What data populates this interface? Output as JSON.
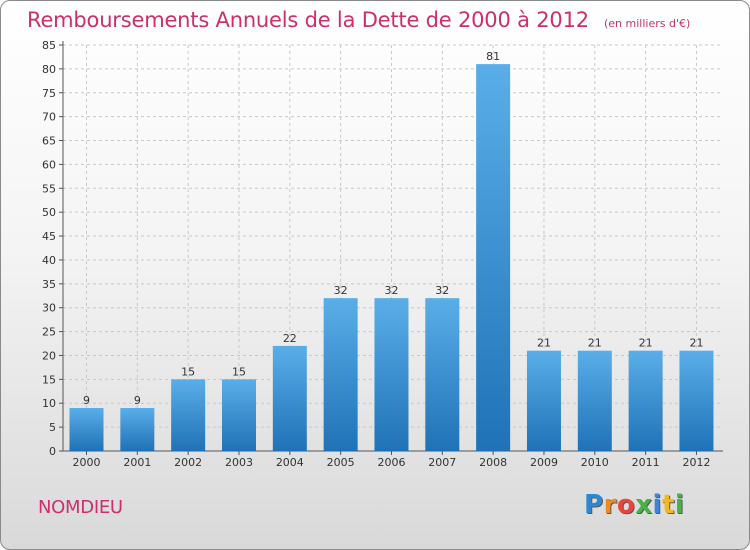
{
  "title": "Remboursements Annuels de la Dette de 2000 à 2012",
  "unit_note": "(en milliers d'€)",
  "commune": "NOMDIEU",
  "logo": {
    "letters": [
      "P",
      "r",
      "o",
      "x",
      "i",
      "t",
      "i"
    ],
    "colors": [
      "#2e87d0",
      "#f18a1c",
      "#e8463a",
      "#47b347",
      "#3d86d6",
      "#f4b81d",
      "#47b347"
    ]
  },
  "colors": {
    "title": "#cc2f6a",
    "bar_light": "#5aaee8",
    "bar_dark": "#1f72b6",
    "grid": "#c8c8c8"
  },
  "chart_data": {
    "type": "bar",
    "title": "Remboursements Annuels de la Dette de 2000 à 2012",
    "categories": [
      "2000",
      "2001",
      "2002",
      "2003",
      "2004",
      "2005",
      "2006",
      "2007",
      "2008",
      "2009",
      "2010",
      "2011",
      "2012"
    ],
    "values": [
      9,
      9,
      15,
      15,
      22,
      32,
      32,
      32,
      81,
      21,
      21,
      21,
      21
    ],
    "xlabel": "",
    "ylabel": "",
    "ylim": [
      0,
      85
    ],
    "yticks": [
      0,
      5,
      10,
      15,
      20,
      25,
      30,
      35,
      40,
      45,
      50,
      55,
      60,
      65,
      70,
      75,
      80,
      85
    ],
    "grid": true
  }
}
